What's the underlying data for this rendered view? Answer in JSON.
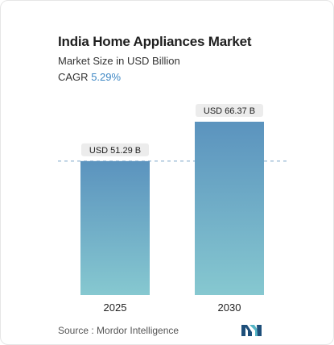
{
  "header": {
    "title": "India Home Appliances Market",
    "subtitle": "Market Size in USD Billion",
    "cagr_label": "CAGR",
    "cagr_value": "5.29%"
  },
  "footer": {
    "source_text": "Source :  Mordor Intelligence",
    "logo_icon": "mordor-intelligence-logo-icon"
  },
  "colors": {
    "bar_top": "#5b93be",
    "bar_bottom": "#86c8d0",
    "label_bg": "#ececec",
    "dashed_line": "#7fa7c9",
    "cagr_accent": "#3f88c5",
    "logo_dark": "#1e4f7a",
    "logo_light": "#56b6c6"
  },
  "chart_data": {
    "type": "bar",
    "categories": [
      "2025",
      "2030"
    ],
    "series": [
      {
        "values": [
          51.29,
          66.37
        ]
      }
    ],
    "data_labels": [
      "USD 51.29 B",
      "USD 66.37 B"
    ],
    "reference_line": 51.29,
    "ylim": [
      0,
      70
    ],
    "grid": false,
    "legend": "none"
  }
}
